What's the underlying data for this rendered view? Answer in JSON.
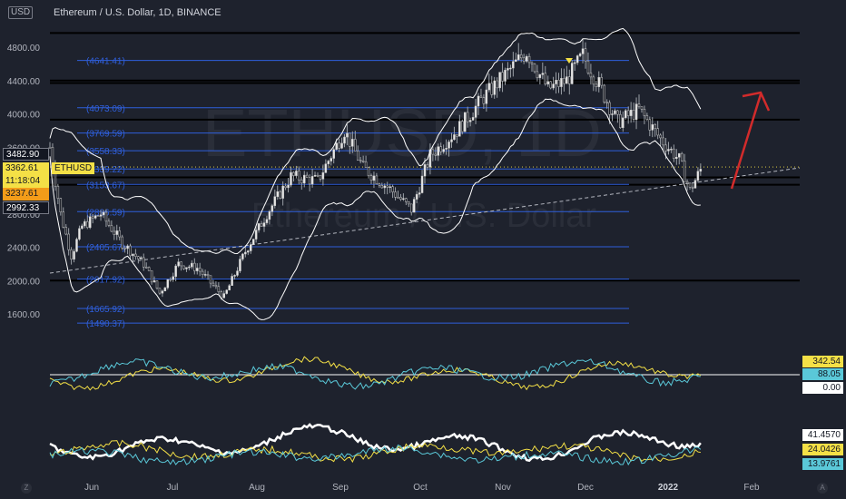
{
  "header": {
    "currency_chip": "USD",
    "title": "Ethereum / U.S. Dollar, 1D, BINANCE"
  },
  "watermark": {
    "line1": "ETHUSD, 1D",
    "line2": "Ethereum / U.S. Dollar"
  },
  "chart_data": [
    {
      "type": "candlestick",
      "title": "Ethereum / U.S. Dollar, 1D, BINANCE",
      "x_tick_labels": [
        "Jun",
        "Jul",
        "Aug",
        "Sep",
        "Oct",
        "Nov",
        "Dec",
        "2022",
        "Feb"
      ],
      "y_tick_labels": [
        "4800.00",
        "4400.00",
        "4000.00",
        "3600.00",
        "2800.00",
        "2400.00",
        "2000.00",
        "1600.00"
      ],
      "ylim": [
        1460,
        4960
      ],
      "close_path_approx": [
        {
          "date": "2021-05-16",
          "price": 3600
        },
        {
          "date": "2021-05-20",
          "price": 2800
        },
        {
          "date": "2021-05-24",
          "price": 2300
        },
        {
          "date": "2021-05-28",
          "price": 2650
        },
        {
          "date": "2021-06-04",
          "price": 2800
        },
        {
          "date": "2021-06-12",
          "price": 2450
        },
        {
          "date": "2021-06-20",
          "price": 2200
        },
        {
          "date": "2021-06-26",
          "price": 1850
        },
        {
          "date": "2021-07-03",
          "price": 2200
        },
        {
          "date": "2021-07-10",
          "price": 2150
        },
        {
          "date": "2021-07-20",
          "price": 1800
        },
        {
          "date": "2021-07-28",
          "price": 2350
        },
        {
          "date": "2021-08-05",
          "price": 2800
        },
        {
          "date": "2021-08-14",
          "price": 3250
        },
        {
          "date": "2021-08-24",
          "price": 3200
        },
        {
          "date": "2021-09-03",
          "price": 3800
        },
        {
          "date": "2021-09-10",
          "price": 3350
        },
        {
          "date": "2021-09-20",
          "price": 3100
        },
        {
          "date": "2021-09-28",
          "price": 2850
        },
        {
          "date": "2021-10-05",
          "price": 3500
        },
        {
          "date": "2021-10-15",
          "price": 3800
        },
        {
          "date": "2021-10-25",
          "price": 4200
        },
        {
          "date": "2021-11-03",
          "price": 4500
        },
        {
          "date": "2021-11-10",
          "price": 4750
        },
        {
          "date": "2021-11-18",
          "price": 4300
        },
        {
          "date": "2021-11-25",
          "price": 4400
        },
        {
          "date": "2021-12-01",
          "price": 4700
        },
        {
          "date": "2021-12-07",
          "price": 4350
        },
        {
          "date": "2021-12-14",
          "price": 3900
        },
        {
          "date": "2021-12-22",
          "price": 4050
        },
        {
          "date": "2021-12-30",
          "price": 3700
        },
        {
          "date": "2022-01-06",
          "price": 3450
        },
        {
          "date": "2022-01-10",
          "price": 3080
        },
        {
          "date": "2022-01-14",
          "price": 3330
        }
      ],
      "horizontal_levels": [
        4970,
        4400,
        4370,
        3930,
        3237.61,
        3150,
        2000
      ],
      "fib_levels": [
        {
          "label": "(4641.41)",
          "price": 4641.41
        },
        {
          "label": "(4073.09)",
          "price": 4073.09
        },
        {
          "label": "(3769.59)",
          "price": 3769.59
        },
        {
          "label": "(3558.33)",
          "price": 3558.33
        },
        {
          "label": "(3339.22)",
          "price": 3339.22
        },
        {
          "label": "(3153.67)",
          "price": 3153.67
        },
        {
          "label": "(2826.59)",
          "price": 2826.59
        },
        {
          "label": "(2405.67)",
          "price": 2405.67
        },
        {
          "label": "(2017.92)",
          "price": 2017.92
        },
        {
          "label": "(1665.92)",
          "price": 1665.92
        },
        {
          "label": "(1490.37)",
          "price": 1490.37
        }
      ],
      "price_tags": [
        {
          "label": "3482.90",
          "price": 3482.9,
          "style": "dark"
        },
        {
          "label": "3362.61",
          "price": 3362.61,
          "style": "yellow"
        },
        {
          "label": "11:18:04",
          "style": "yellow"
        },
        {
          "label": "3237.61",
          "price": 3237.61,
          "style": "orange"
        },
        {
          "label": "2992.33",
          "price": 2992.33,
          "style": "dark"
        }
      ],
      "symbol_label": "ETHUSD",
      "grid": false
    },
    {
      "type": "line",
      "panel": "indicator-1",
      "series": [
        {
          "color": "#f4e046",
          "last": "342.54"
        },
        {
          "color": "#5ac8d8",
          "last": "88.05"
        },
        {
          "color": "#ffffff",
          "last": "0.00"
        }
      ]
    },
    {
      "type": "line",
      "panel": "indicator-2",
      "series": [
        {
          "color": "#ffffff",
          "last": "41.4570"
        },
        {
          "color": "#f4e046",
          "last": "24.0426"
        },
        {
          "color": "#5ac8d8",
          "last": "13.9761"
        }
      ]
    }
  ],
  "colors": {
    "bg": "#1e222d",
    "fib": "#2f5fdc",
    "fib_text": "#2f5fdc",
    "tag_orange": "#f39c19",
    "tag_yellow": "#f4e046",
    "arrow": "#d22b2b"
  },
  "corner_icons": {
    "left": "Z",
    "right": "A"
  }
}
